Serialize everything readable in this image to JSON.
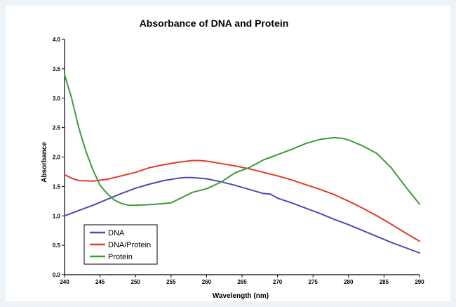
{
  "chart_data": {
    "type": "line",
    "title": "Absorbance of DNA and Protein",
    "xlabel": "Wavelength (nm)",
    "ylabel": "Absorbance",
    "xlim": [
      240,
      290
    ],
    "ylim": [
      0.0,
      4.0
    ],
    "x_ticks": [
      "240",
      "245",
      "250",
      "255",
      "260",
      "265",
      "270",
      "275",
      "280",
      "285",
      "290"
    ],
    "y_ticks": [
      "0.0",
      "0.5",
      "1.0",
      "1.5",
      "2.0",
      "2.5",
      "3.0",
      "3.5",
      "4.0"
    ],
    "grid": false,
    "legend_position": "bottom-left",
    "series": [
      {
        "name": "DNA",
        "color": "#4b4bb5",
        "x": [
          240,
          242,
          244,
          246,
          248,
          250,
          252,
          254,
          256,
          257,
          258,
          260,
          262,
          264,
          266,
          268,
          269,
          270,
          272,
          274,
          276,
          278,
          280,
          282,
          284,
          286,
          288,
          290
        ],
        "y": [
          1.0,
          1.09,
          1.18,
          1.28,
          1.38,
          1.47,
          1.54,
          1.6,
          1.64,
          1.65,
          1.65,
          1.63,
          1.58,
          1.52,
          1.45,
          1.38,
          1.37,
          1.3,
          1.22,
          1.13,
          1.04,
          0.94,
          0.85,
          0.75,
          0.65,
          0.55,
          0.46,
          0.37
        ]
      },
      {
        "name": "DNA/Protein",
        "color": "#e03c2c",
        "x": [
          240,
          241,
          242,
          244,
          246,
          248,
          250,
          252,
          254,
          256,
          258,
          259,
          260,
          262,
          264,
          266,
          268,
          270,
          272,
          274,
          276,
          278,
          280,
          282,
          284,
          286,
          288,
          290
        ],
        "y": [
          1.7,
          1.64,
          1.6,
          1.59,
          1.62,
          1.68,
          1.74,
          1.82,
          1.87,
          1.91,
          1.94,
          1.94,
          1.93,
          1.89,
          1.85,
          1.8,
          1.74,
          1.68,
          1.61,
          1.53,
          1.45,
          1.36,
          1.25,
          1.13,
          1.0,
          0.86,
          0.71,
          0.57
        ]
      },
      {
        "name": "Protein",
        "color": "#3f9a3a",
        "x": [
          240,
          241,
          242,
          243,
          244,
          245,
          246,
          247,
          248,
          249,
          250,
          252,
          254,
          255,
          256,
          258,
          260,
          262,
          264,
          266,
          268,
          270,
          272,
          274,
          276,
          278,
          279,
          280,
          282,
          284,
          286,
          288,
          290
        ],
        "y": [
          3.4,
          3.0,
          2.5,
          2.1,
          1.78,
          1.52,
          1.38,
          1.27,
          1.21,
          1.18,
          1.18,
          1.19,
          1.21,
          1.22,
          1.28,
          1.4,
          1.46,
          1.57,
          1.73,
          1.82,
          1.95,
          2.04,
          2.13,
          2.23,
          2.3,
          2.33,
          2.32,
          2.29,
          2.19,
          2.06,
          1.82,
          1.5,
          1.2
        ]
      }
    ]
  }
}
